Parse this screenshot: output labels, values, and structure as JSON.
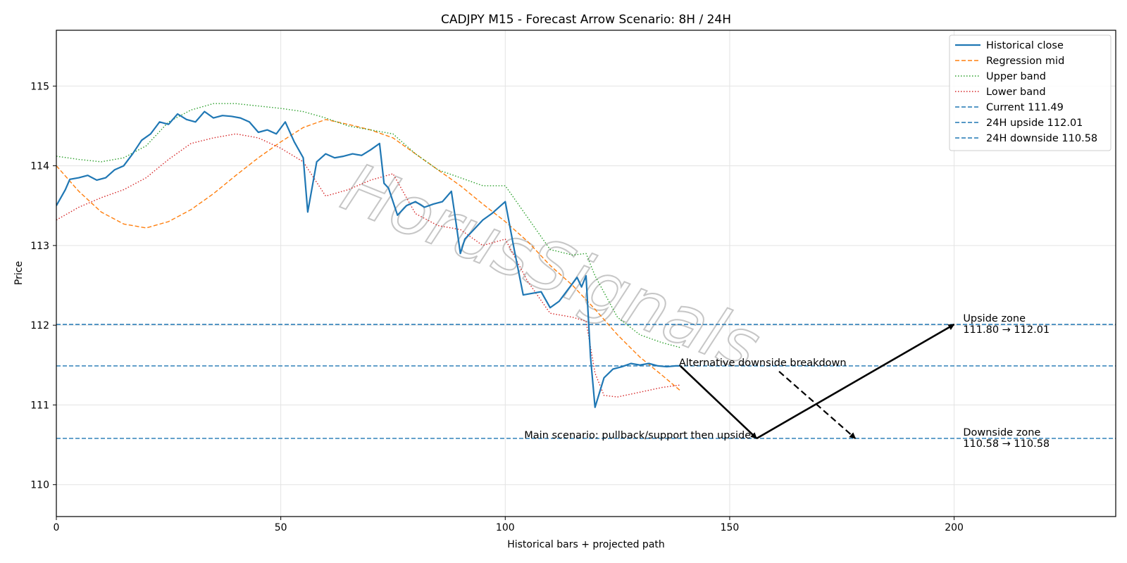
{
  "chart_data": {
    "type": "line",
    "title": "CADJPY M15 - Forecast Arrow Scenario: 8H / 24H",
    "xlabel": "Historical bars + projected path",
    "ylabel": "Price",
    "xlim": [
      0,
      236
    ],
    "ylim": [
      109.6,
      115.7
    ],
    "xticks": [
      0,
      50,
      100,
      150,
      200
    ],
    "yticks": [
      110,
      111,
      112,
      113,
      114,
      115
    ],
    "grid": true,
    "legend_position": "top-right",
    "watermark": "HorusSignals",
    "series": [
      {
        "name": "Historical close",
        "color": "#1f77b4",
        "style": "solid",
        "x": [
          0,
          2,
          3,
          5,
          7,
          9,
          11,
          13,
          15,
          17,
          19,
          21,
          23,
          25,
          27,
          29,
          31,
          33,
          35,
          37,
          39,
          41,
          43,
          45,
          47,
          49,
          51,
          53,
          55,
          56,
          58,
          60,
          62,
          64,
          66,
          68,
          70,
          72,
          73,
          74,
          76,
          78,
          80,
          82,
          84,
          86,
          88,
          89,
          90,
          91,
          93,
          95,
          97,
          99,
          100,
          102,
          104,
          106,
          108,
          110,
          112,
          114,
          116,
          117,
          118,
          119,
          120,
          122,
          124,
          126,
          128,
          130,
          132,
          134,
          136,
          138,
          139
        ],
        "y": [
          113.5,
          113.7,
          113.83,
          113.85,
          113.88,
          113.82,
          113.85,
          113.95,
          114.0,
          114.15,
          114.32,
          114.4,
          114.55,
          114.52,
          114.65,
          114.58,
          114.55,
          114.68,
          114.6,
          114.63,
          114.62,
          114.6,
          114.55,
          114.42,
          114.45,
          114.4,
          114.55,
          114.3,
          114.1,
          113.42,
          114.05,
          114.15,
          114.1,
          114.12,
          114.15,
          114.13,
          114.2,
          114.28,
          113.78,
          113.72,
          113.38,
          113.5,
          113.55,
          113.48,
          113.52,
          113.55,
          113.68,
          113.3,
          112.9,
          113.08,
          113.2,
          113.32,
          113.4,
          113.5,
          113.55,
          112.95,
          112.38,
          112.4,
          112.42,
          112.22,
          112.3,
          112.45,
          112.6,
          112.48,
          112.62,
          111.6,
          110.97,
          111.34,
          111.45,
          111.48,
          111.52,
          111.5,
          111.52,
          111.49,
          111.48,
          111.49,
          111.49
        ]
      },
      {
        "name": "Regression mid",
        "color": "#ff7f0e",
        "style": "dashed",
        "x": [
          0,
          5,
          10,
          15,
          20,
          25,
          30,
          35,
          40,
          45,
          50,
          55,
          60,
          65,
          70,
          75,
          80,
          85,
          90,
          95,
          100,
          105,
          110,
          115,
          120,
          125,
          130,
          135,
          139
        ],
        "y": [
          114.0,
          113.68,
          113.42,
          113.27,
          113.22,
          113.3,
          113.45,
          113.65,
          113.88,
          114.1,
          114.3,
          114.48,
          114.58,
          114.52,
          114.45,
          114.35,
          114.15,
          113.95,
          113.75,
          113.52,
          113.3,
          113.05,
          112.75,
          112.5,
          112.2,
          111.88,
          111.6,
          111.37,
          111.18
        ]
      },
      {
        "name": "Upper band",
        "color": "#2ca02c",
        "style": "dotted",
        "x": [
          0,
          5,
          10,
          15,
          20,
          25,
          30,
          35,
          40,
          45,
          50,
          55,
          60,
          65,
          70,
          75,
          80,
          85,
          90,
          95,
          100,
          105,
          110,
          115,
          118,
          120,
          125,
          130,
          135,
          139
        ],
        "y": [
          114.12,
          114.08,
          114.05,
          114.1,
          114.25,
          114.55,
          114.7,
          114.78,
          114.78,
          114.75,
          114.72,
          114.68,
          114.6,
          114.5,
          114.45,
          114.4,
          114.15,
          113.95,
          113.85,
          113.75,
          113.75,
          113.35,
          112.95,
          112.88,
          112.9,
          112.62,
          112.1,
          111.88,
          111.78,
          111.72
        ]
      },
      {
        "name": "Lower band",
        "color": "#d62728",
        "style": "dotted",
        "x": [
          0,
          5,
          10,
          15,
          20,
          25,
          30,
          35,
          40,
          45,
          50,
          55,
          60,
          65,
          70,
          75,
          80,
          85,
          90,
          95,
          100,
          105,
          110,
          115,
          118,
          120,
          122,
          125,
          130,
          135,
          139
        ],
        "y": [
          113.32,
          113.48,
          113.6,
          113.7,
          113.85,
          114.08,
          114.28,
          114.35,
          114.4,
          114.35,
          114.22,
          114.05,
          113.62,
          113.7,
          113.82,
          113.9,
          113.4,
          113.25,
          113.2,
          113.0,
          113.08,
          112.55,
          112.15,
          112.1,
          112.05,
          111.4,
          111.12,
          111.1,
          111.16,
          111.22,
          111.25
        ]
      }
    ],
    "reference_lines": [
      {
        "name": "Current 111.49",
        "y": 111.49,
        "color": "#1f77b4",
        "style": "dashed"
      },
      {
        "name": "24H upside 112.01",
        "y": 112.01,
        "color": "#1f77b4",
        "style": "dashed"
      },
      {
        "name": "24H downside 110.58",
        "y": 110.58,
        "color": "#1f77b4",
        "style": "dashed"
      }
    ],
    "arrows": [
      {
        "id": "main-leg-1",
        "from": [
          139,
          111.49
        ],
        "to": [
          156,
          110.58
        ],
        "style": "solid"
      },
      {
        "id": "main-leg-2",
        "from": [
          156,
          110.58
        ],
        "to": [
          200,
          112.01
        ],
        "style": "solid"
      },
      {
        "id": "alt-leg",
        "from": [
          161,
          111.42
        ],
        "to": [
          178,
          110.58
        ],
        "style": "dashed"
      }
    ],
    "annotations": [
      {
        "id": "upside-zone",
        "lines": [
          "Upside zone",
          "111.80 → 112.01"
        ],
        "x": 202,
        "y": 112.01
      },
      {
        "id": "downside-zone",
        "lines": [
          "Downside zone",
          "110.58 → 110.58"
        ],
        "x": 202,
        "y": 110.58
      },
      {
        "id": "alt-scenario",
        "lines": [
          "Alternative downside breakdown"
        ],
        "x": 139,
        "y": 111.49
      },
      {
        "id": "main-scenario",
        "lines": [
          "Main scenario: pullback/support then upside"
        ],
        "x": 156,
        "y": 110.58
      }
    ]
  }
}
